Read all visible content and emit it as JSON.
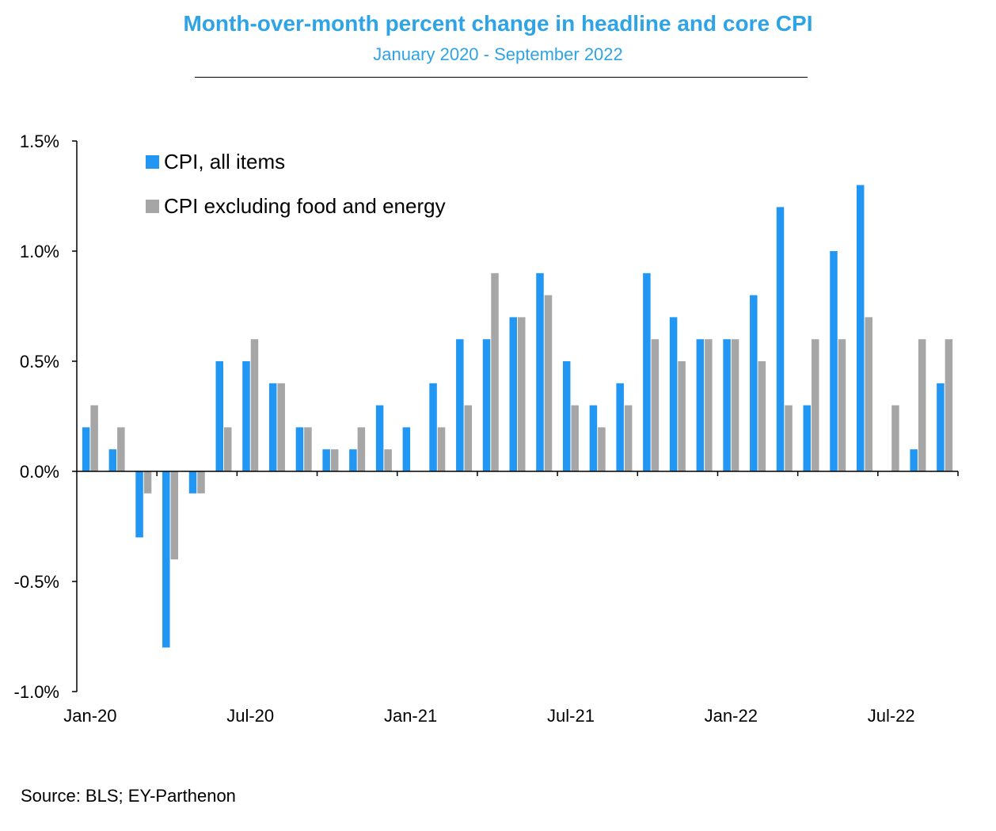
{
  "header": {
    "title": "Month-over-month percent change in headline and core CPI",
    "subtitle": "January 2020 - September 2022"
  },
  "footer": {
    "source": "Source: BLS; EY-Parthenon"
  },
  "colors": {
    "headline": "#2196f3",
    "core": "#a6a6a6",
    "title": "#2ea3e6"
  },
  "chart_data": {
    "type": "bar",
    "categories": [
      "Jan-20",
      "Feb-20",
      "Mar-20",
      "Apr-20",
      "May-20",
      "Jun-20",
      "Jul-20",
      "Aug-20",
      "Sep-20",
      "Oct-20",
      "Nov-20",
      "Dec-20",
      "Jan-21",
      "Feb-21",
      "Mar-21",
      "Apr-21",
      "May-21",
      "Jun-21",
      "Jul-21",
      "Aug-21",
      "Sep-21",
      "Oct-21",
      "Nov-21",
      "Dec-21",
      "Jan-22",
      "Feb-22",
      "Mar-22",
      "Apr-22",
      "May-22",
      "Jun-22",
      "Jul-22",
      "Aug-22",
      "Sep-22"
    ],
    "x_tick_labels": [
      "Jan-20",
      "Jul-20",
      "Jan-21",
      "Jul-21",
      "Jan-22",
      "Jul-22"
    ],
    "x_tick_label_indices": [
      0,
      6,
      12,
      18,
      24,
      30
    ],
    "y_tick_labels": [
      "1.5%",
      "1.0%",
      "0.5%",
      "0.0%",
      "-0.5%",
      "-1.0%"
    ],
    "y_tick_values": [
      1.5,
      1.0,
      0.5,
      0.0,
      -0.5,
      -1.0
    ],
    "ylim": [
      -1.0,
      1.5
    ],
    "grid": false,
    "legend_position": "top-left",
    "series": [
      {
        "name": "CPI, all items",
        "values": [
          0.2,
          0.1,
          -0.3,
          -0.8,
          -0.1,
          0.5,
          0.5,
          0.4,
          0.2,
          0.1,
          0.1,
          0.3,
          0.2,
          0.4,
          0.6,
          0.6,
          0.7,
          0.9,
          0.5,
          0.3,
          0.4,
          0.9,
          0.7,
          0.6,
          0.6,
          0.8,
          1.2,
          0.3,
          1.0,
          1.3,
          0.0,
          0.1,
          0.4
        ]
      },
      {
        "name": "CPI excluding food and energy",
        "values": [
          0.3,
          0.2,
          -0.1,
          -0.4,
          -0.1,
          0.2,
          0.6,
          0.4,
          0.2,
          0.1,
          0.2,
          0.1,
          0.0,
          0.2,
          0.3,
          0.9,
          0.7,
          0.8,
          0.3,
          0.2,
          0.3,
          0.6,
          0.5,
          0.6,
          0.6,
          0.5,
          0.3,
          0.6,
          0.6,
          0.7,
          0.3,
          0.6,
          0.6
        ]
      }
    ]
  }
}
